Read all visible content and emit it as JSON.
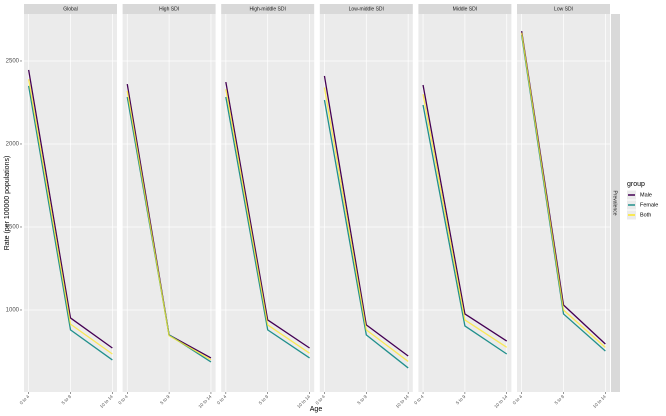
{
  "chart_data": {
    "type": "line",
    "y_label": "Rate (per 100000 populations)",
    "x_label": "Age",
    "strip_right": "Prevalence",
    "legend_title": "group",
    "categories": [
      "0 to 4",
      "5 to 9",
      "10 to 14"
    ],
    "ylim": [
      506,
      2783
    ],
    "yticks": [
      1000,
      1500,
      2000,
      2500
    ],
    "grid": true,
    "panels": [
      {
        "title": "Global",
        "series": [
          {
            "name": "Male",
            "color": "#440154",
            "values": [
              2446,
              952,
              771
            ]
          },
          {
            "name": "Female",
            "color": "#21908c",
            "values": [
              2350,
              880,
              699
            ]
          },
          {
            "name": "Both",
            "color": "#fde725",
            "values": [
              2390,
              915,
              735
            ]
          }
        ]
      },
      {
        "title": "High SDI",
        "series": [
          {
            "name": "Male",
            "color": "#440154",
            "values": [
              2361,
              850,
              711
            ]
          },
          {
            "name": "Female",
            "color": "#21908c",
            "values": [
              2283,
              850,
              687
            ]
          },
          {
            "name": "Both",
            "color": "#fde725",
            "values": [
              2320,
              845,
              700
            ]
          }
        ]
      },
      {
        "title": "High-middle SDI",
        "series": [
          {
            "name": "Male",
            "color": "#440154",
            "values": [
              2373,
              940,
              771
            ]
          },
          {
            "name": "Female",
            "color": "#21908c",
            "values": [
              2283,
              880,
              711
            ]
          },
          {
            "name": "Both",
            "color": "#fde725",
            "values": [
              2330,
              910,
              740
            ]
          }
        ]
      },
      {
        "title": "Low-middle SDI",
        "series": [
          {
            "name": "Male",
            "color": "#440154",
            "values": [
              2410,
              910,
              723
            ]
          },
          {
            "name": "Female",
            "color": "#21908c",
            "values": [
              2265,
              850,
              651
            ]
          },
          {
            "name": "Both",
            "color": "#fde725",
            "values": [
              2340,
              880,
              690
            ]
          }
        ]
      },
      {
        "title": "Middle SDI",
        "series": [
          {
            "name": "Male",
            "color": "#440154",
            "values": [
              2355,
              976,
              813
            ]
          },
          {
            "name": "Female",
            "color": "#21908c",
            "values": [
              2235,
              904,
              735
            ]
          },
          {
            "name": "Both",
            "color": "#fde725",
            "values": [
              2300,
              940,
              775
            ]
          }
        ]
      },
      {
        "title": "Low SDI",
        "series": [
          {
            "name": "Male",
            "color": "#440154",
            "values": [
              2680,
              1030,
              795
            ]
          },
          {
            "name": "Female",
            "color": "#21908c",
            "values": [
              2656,
              976,
              753
            ]
          },
          {
            "name": "Both",
            "color": "#fde725",
            "values": [
              2670,
              1000,
              775
            ]
          }
        ]
      }
    ]
  }
}
